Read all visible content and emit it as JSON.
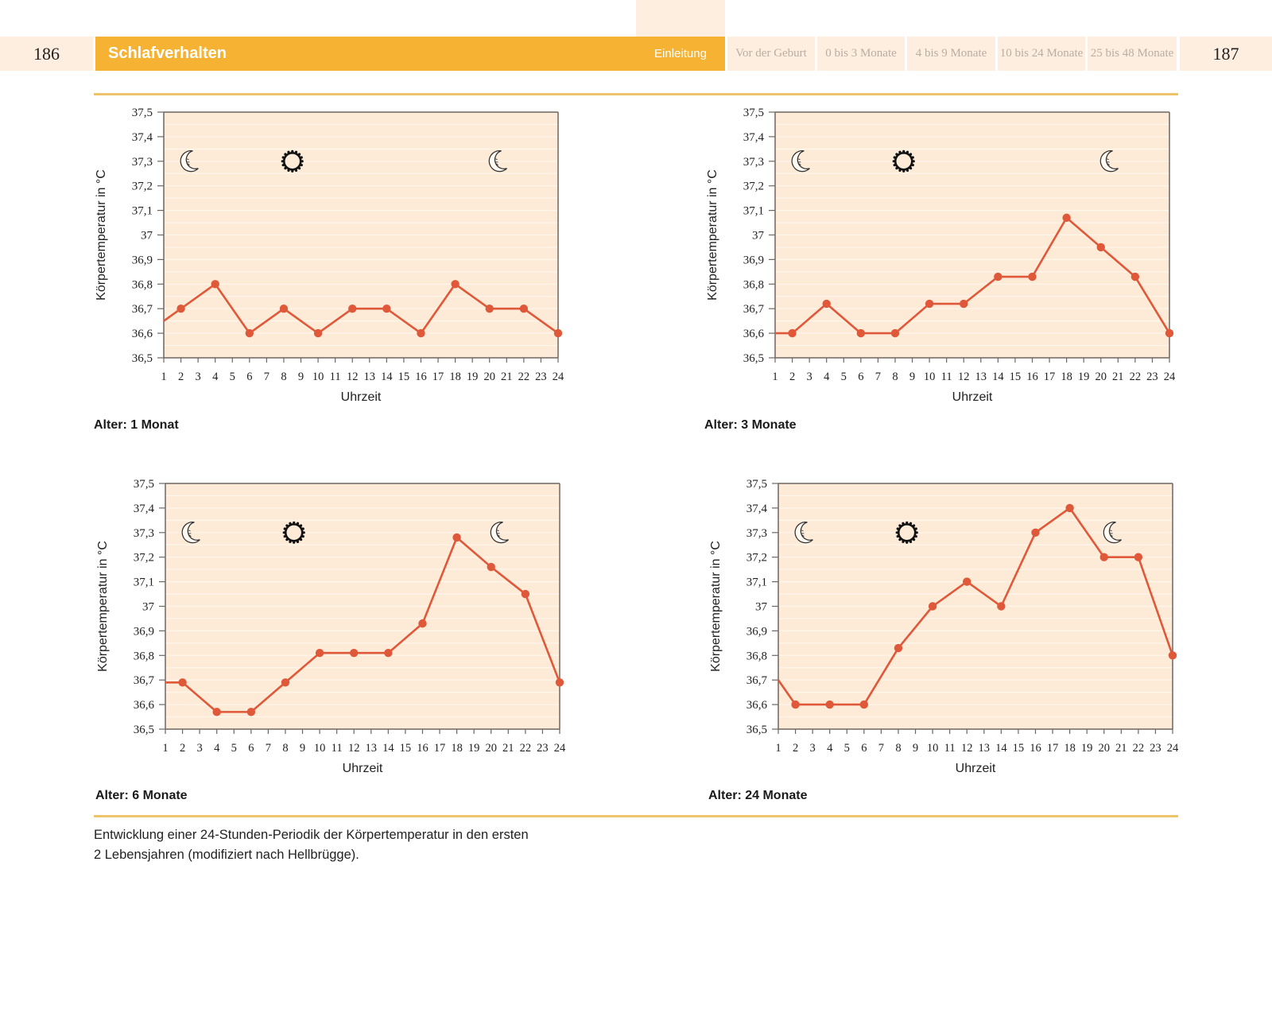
{
  "header": {
    "page_left": "186",
    "page_right": "187",
    "section_title": "Schlafverhalten",
    "tabs": [
      {
        "label": "Einleitung",
        "active": true
      },
      {
        "label": "Vor der Geburt",
        "active": false
      },
      {
        "label": "0 bis 3 Monate",
        "active": false
      },
      {
        "label": "4 bis 9 Monate",
        "active": false
      },
      {
        "label": "10 bis 24 Monate",
        "active": false
      },
      {
        "label": "25 bis 48 Monate",
        "active": false
      }
    ]
  },
  "colors": {
    "accent": "#f6b233",
    "tab_bg": "#fdeee0",
    "plot_bg": "#fdebd7",
    "line": "#e0583a",
    "rule": "#efc36a"
  },
  "caption": {
    "line1": "Entwicklung einer 24-Stunden-Periodik der Körpertemperatur in den ersten",
    "line2": "2 Lebensjahren (modifiziert nach Hellbrügge)."
  },
  "chart_data": [
    {
      "type": "line",
      "label": "Alter: 1 Monat",
      "xlabel": "Uhrzeit",
      "ylabel": "Körpertemperatur in °C",
      "xlim": [
        1,
        24
      ],
      "ylim": [
        36.5,
        37.5
      ],
      "x_ticks": [
        "1",
        "2",
        "3",
        "4",
        "5",
        "6",
        "7",
        "8",
        "9",
        "10",
        "11",
        "12",
        "13",
        "14",
        "15",
        "16",
        "17",
        "18",
        "19",
        "20",
        "21",
        "22",
        "23",
        "24"
      ],
      "y_ticks": [
        "36,5",
        "36,6",
        "36,7",
        "36,8",
        "36,9",
        "37",
        "37,1",
        "37,2",
        "37,3",
        "37,4",
        "37,5"
      ],
      "icons": [
        {
          "name": "moon-icon",
          "x": 2.5
        },
        {
          "name": "sun-icon",
          "x": 8.5
        },
        {
          "name": "moon-icon",
          "x": 20.5
        }
      ],
      "start": {
        "x": 1,
        "y": 36.65
      },
      "x": [
        2,
        4,
        6,
        8,
        10,
        12,
        14,
        16,
        18,
        20,
        22,
        24
      ],
      "y": [
        36.7,
        36.8,
        36.6,
        36.7,
        36.6,
        36.7,
        36.7,
        36.6,
        36.8,
        36.7,
        36.7,
        36.6
      ]
    },
    {
      "type": "line",
      "label": "Alter: 3 Monate",
      "xlabel": "Uhrzeit",
      "ylabel": "Körpertemperatur in °C",
      "xlim": [
        1,
        24
      ],
      "ylim": [
        36.5,
        37.5
      ],
      "x_ticks": [
        "1",
        "2",
        "3",
        "4",
        "5",
        "6",
        "7",
        "8",
        "9",
        "10",
        "11",
        "12",
        "13",
        "14",
        "15",
        "16",
        "17",
        "18",
        "19",
        "20",
        "21",
        "22",
        "23",
        "24"
      ],
      "y_ticks": [
        "36,5",
        "36,6",
        "36,7",
        "36,8",
        "36,9",
        "37",
        "37,1",
        "37,2",
        "37,3",
        "37,4",
        "37,5"
      ],
      "icons": [
        {
          "name": "moon-icon",
          "x": 2.5
        },
        {
          "name": "sun-icon",
          "x": 8.5
        },
        {
          "name": "moon-icon",
          "x": 20.5
        }
      ],
      "start": {
        "x": 1,
        "y": 36.6
      },
      "x": [
        2,
        4,
        6,
        8,
        10,
        12,
        14,
        16,
        18,
        20,
        22,
        24
      ],
      "y": [
        36.6,
        36.72,
        36.6,
        36.6,
        36.72,
        36.72,
        36.83,
        36.83,
        37.07,
        36.95,
        36.83,
        36.6
      ]
    },
    {
      "type": "line",
      "label": "Alter: 6 Monate",
      "xlabel": "Uhrzeit",
      "ylabel": "Körpertemperatur in °C",
      "xlim": [
        1,
        24
      ],
      "ylim": [
        36.5,
        37.5
      ],
      "x_ticks": [
        "1",
        "2",
        "3",
        "4",
        "5",
        "6",
        "7",
        "8",
        "9",
        "10",
        "11",
        "12",
        "13",
        "14",
        "15",
        "16",
        "17",
        "18",
        "19",
        "20",
        "21",
        "22",
        "23",
        "24"
      ],
      "y_ticks": [
        "36,5",
        "36,6",
        "36,7",
        "36,8",
        "36,9",
        "37",
        "37,1",
        "37,2",
        "37,3",
        "37,4",
        "37,5"
      ],
      "icons": [
        {
          "name": "moon-icon",
          "x": 2.5
        },
        {
          "name": "sun-icon",
          "x": 8.5
        },
        {
          "name": "moon-icon",
          "x": 20.5
        }
      ],
      "start": {
        "x": 1,
        "y": 36.69
      },
      "x": [
        2,
        4,
        6,
        8,
        10,
        12,
        14,
        16,
        18,
        20,
        22,
        24
      ],
      "y": [
        36.69,
        36.57,
        36.57,
        36.69,
        36.81,
        36.81,
        36.81,
        36.93,
        37.28,
        37.16,
        37.05,
        36.69
      ]
    },
    {
      "type": "line",
      "label": "Alter: 24 Monate",
      "xlabel": "Uhrzeit",
      "ylabel": "Körpertemperatur in °C",
      "xlim": [
        1,
        24
      ],
      "ylim": [
        36.5,
        37.5
      ],
      "x_ticks": [
        "1",
        "2",
        "3",
        "4",
        "5",
        "6",
        "7",
        "8",
        "9",
        "10",
        "11",
        "12",
        "13",
        "14",
        "15",
        "16",
        "17",
        "18",
        "19",
        "20",
        "21",
        "22",
        "23",
        "24"
      ],
      "y_ticks": [
        "36,5",
        "36,6",
        "36,7",
        "36,8",
        "36,9",
        "37",
        "37,1",
        "37,2",
        "37,3",
        "37,4",
        "37,5"
      ],
      "icons": [
        {
          "name": "moon-icon",
          "x": 2.5
        },
        {
          "name": "sun-icon",
          "x": 8.5
        },
        {
          "name": "moon-icon",
          "x": 20.5
        }
      ],
      "start": {
        "x": 1,
        "y": 36.7
      },
      "x": [
        2,
        4,
        6,
        8,
        10,
        12,
        14,
        16,
        18,
        20,
        22,
        24
      ],
      "y": [
        36.6,
        36.6,
        36.6,
        36.83,
        37.0,
        37.1,
        37.0,
        37.3,
        37.4,
        37.2,
        37.2,
        36.8
      ]
    }
  ]
}
